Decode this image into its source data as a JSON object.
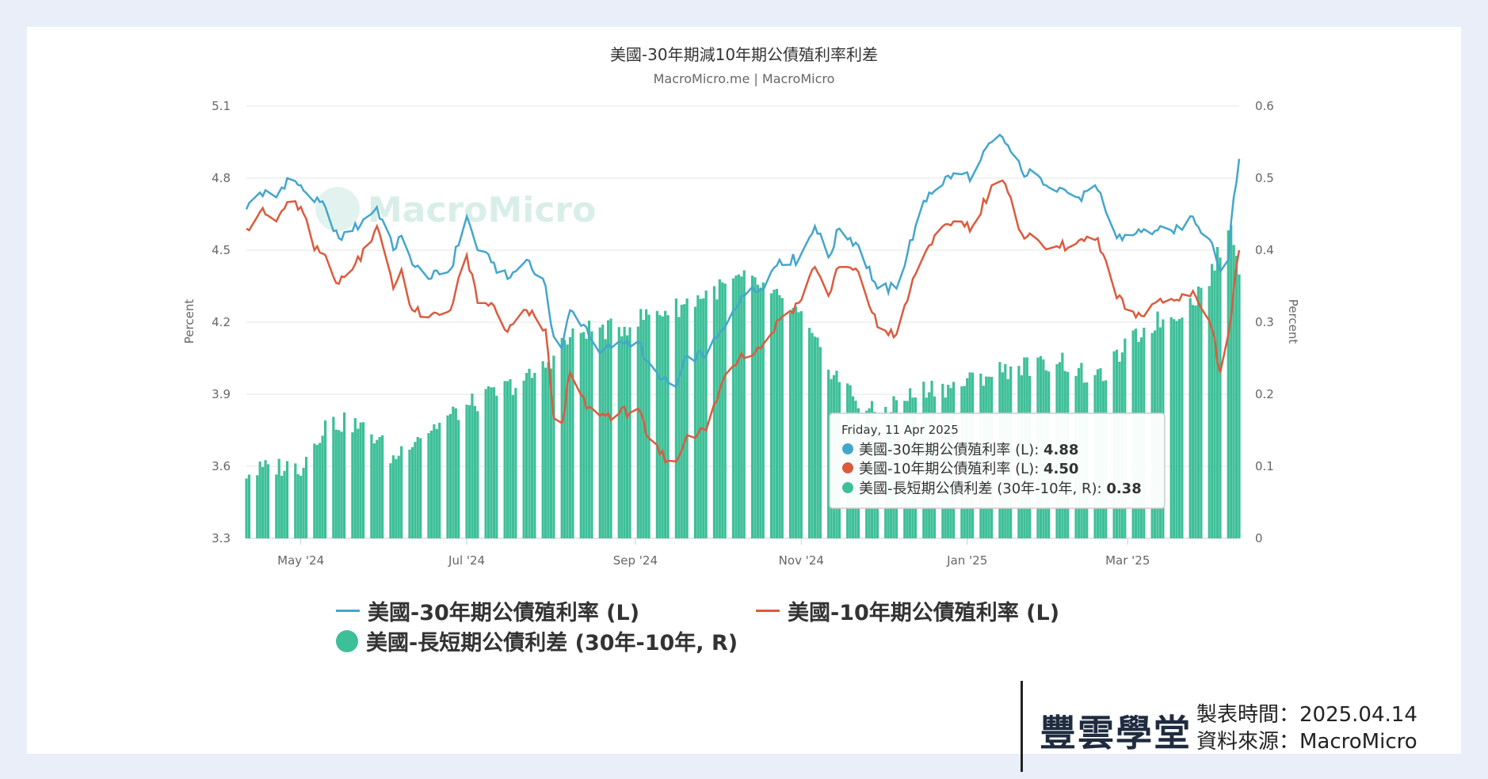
{
  "chart_data": {
    "type": "line",
    "title": "美國-30年期減10年期公債殖利率利差",
    "subtitle": "MacroMicro.me | MacroMicro",
    "watermark": "MacroMicro",
    "left_axis": {
      "label": "Percent",
      "ticks": [
        "5.1",
        "4.8",
        "4.5",
        "4.2",
        "3.9",
        "3.6",
        "3.3"
      ],
      "range": [
        3.3,
        5.1
      ]
    },
    "right_axis": {
      "label": "Percent",
      "ticks": [
        "0.6",
        "0.5",
        "0.4",
        "0.3",
        "0.2",
        "0.1",
        "0"
      ],
      "range": [
        0,
        0.6
      ]
    },
    "x_ticks": [
      "May '24",
      "Jul '24",
      "Sep '24",
      "Nov '24",
      "Jan '25",
      "Mar '25"
    ],
    "x_tick_dates": [
      "2024-05-01",
      "2024-07-01",
      "2024-09-01",
      "2024-11-01",
      "2025-01-01",
      "2025-03-01"
    ],
    "x_range": [
      "2024-04-11",
      "2025-04-11"
    ],
    "grid": true,
    "colors": {
      "yield30": "#44a6cc",
      "yield10": "#db5b3e",
      "spread": "#3dbf98"
    },
    "series": [
      {
        "name": "美國-30年期公債殖利率 (L)",
        "axis": "left",
        "kind": "line",
        "points": [
          [
            "2024-04-11",
            4.67
          ],
          [
            "2024-04-16",
            4.74
          ],
          [
            "2024-04-22",
            4.72
          ],
          [
            "2024-04-26",
            4.8
          ],
          [
            "2024-05-01",
            4.77
          ],
          [
            "2024-05-06",
            4.7
          ],
          [
            "2024-05-10",
            4.68
          ],
          [
            "2024-05-15",
            4.55
          ],
          [
            "2024-05-20",
            4.58
          ],
          [
            "2024-05-29",
            4.68
          ],
          [
            "2024-06-04",
            4.5
          ],
          [
            "2024-06-07",
            4.56
          ],
          [
            "2024-06-11",
            4.44
          ],
          [
            "2024-06-17",
            4.38
          ],
          [
            "2024-06-25",
            4.42
          ],
          [
            "2024-07-01",
            4.64
          ],
          [
            "2024-07-05",
            4.5
          ],
          [
            "2024-07-10",
            4.45
          ],
          [
            "2024-07-16",
            4.38
          ],
          [
            "2024-07-23",
            4.46
          ],
          [
            "2024-07-30",
            4.35
          ],
          [
            "2024-08-02",
            4.14
          ],
          [
            "2024-08-05",
            4.09
          ],
          [
            "2024-08-08",
            4.25
          ],
          [
            "2024-08-14",
            4.18
          ],
          [
            "2024-08-19",
            4.07
          ],
          [
            "2024-08-26",
            4.12
          ],
          [
            "2024-09-02",
            4.12
          ],
          [
            "2024-09-05",
            4.04
          ],
          [
            "2024-09-10",
            3.96
          ],
          [
            "2024-09-16",
            3.93
          ],
          [
            "2024-09-20",
            4.06
          ],
          [
            "2024-09-27",
            4.06
          ],
          [
            "2024-10-04",
            4.18
          ],
          [
            "2024-10-10",
            4.31
          ],
          [
            "2024-10-17",
            4.34
          ],
          [
            "2024-10-24",
            4.46
          ],
          [
            "2024-10-31",
            4.46
          ],
          [
            "2024-11-06",
            4.6
          ],
          [
            "2024-11-11",
            4.47
          ],
          [
            "2024-11-15",
            4.59
          ],
          [
            "2024-11-22",
            4.52
          ],
          [
            "2024-11-29",
            4.34
          ],
          [
            "2024-12-06",
            4.34
          ],
          [
            "2024-12-13",
            4.6
          ],
          [
            "2024-12-18",
            4.74
          ],
          [
            "2024-12-27",
            4.82
          ],
          [
            "2025-01-03",
            4.81
          ],
          [
            "2025-01-10",
            4.95
          ],
          [
            "2025-01-14",
            4.97
          ],
          [
            "2025-01-21",
            4.83
          ],
          [
            "2025-01-28",
            4.8
          ],
          [
            "2025-02-04",
            4.76
          ],
          [
            "2025-02-11",
            4.72
          ],
          [
            "2025-02-18",
            4.75
          ],
          [
            "2025-02-25",
            4.55
          ],
          [
            "2025-03-04",
            4.57
          ],
          [
            "2025-03-11",
            4.58
          ],
          [
            "2025-03-18",
            4.57
          ],
          [
            "2025-03-25",
            4.64
          ],
          [
            "2025-04-01",
            4.53
          ],
          [
            "2025-04-04",
            4.41
          ],
          [
            "2025-04-07",
            4.46
          ],
          [
            "2025-04-09",
            4.72
          ],
          [
            "2025-04-11",
            4.88
          ]
        ]
      },
      {
        "name": "美國-10年期公債殖利率 (L)",
        "axis": "left",
        "kind": "line",
        "points": [
          [
            "2024-04-11",
            4.59
          ],
          [
            "2024-04-16",
            4.66
          ],
          [
            "2024-04-22",
            4.62
          ],
          [
            "2024-04-26",
            4.7
          ],
          [
            "2024-05-01",
            4.68
          ],
          [
            "2024-05-06",
            4.5
          ],
          [
            "2024-05-10",
            4.48
          ],
          [
            "2024-05-15",
            4.36
          ],
          [
            "2024-05-20",
            4.42
          ],
          [
            "2024-05-29",
            4.6
          ],
          [
            "2024-06-04",
            4.34
          ],
          [
            "2024-06-07",
            4.42
          ],
          [
            "2024-06-11",
            4.25
          ],
          [
            "2024-06-17",
            4.22
          ],
          [
            "2024-06-25",
            4.25
          ],
          [
            "2024-07-01",
            4.48
          ],
          [
            "2024-07-05",
            4.28
          ],
          [
            "2024-07-10",
            4.28
          ],
          [
            "2024-07-16",
            4.16
          ],
          [
            "2024-07-23",
            4.25
          ],
          [
            "2024-07-30",
            4.17
          ],
          [
            "2024-08-02",
            3.8
          ],
          [
            "2024-08-05",
            3.78
          ],
          [
            "2024-08-08",
            3.99
          ],
          [
            "2024-08-14",
            3.84
          ],
          [
            "2024-08-19",
            3.81
          ],
          [
            "2024-08-26",
            3.82
          ],
          [
            "2024-09-02",
            3.84
          ],
          [
            "2024-09-05",
            3.73
          ],
          [
            "2024-09-10",
            3.65
          ],
          [
            "2024-09-16",
            3.62
          ],
          [
            "2024-09-20",
            3.73
          ],
          [
            "2024-09-27",
            3.75
          ],
          [
            "2024-10-04",
            3.98
          ],
          [
            "2024-10-10",
            4.07
          ],
          [
            "2024-10-17",
            4.09
          ],
          [
            "2024-10-24",
            4.21
          ],
          [
            "2024-10-31",
            4.28
          ],
          [
            "2024-11-06",
            4.43
          ],
          [
            "2024-11-11",
            4.31
          ],
          [
            "2024-11-15",
            4.43
          ],
          [
            "2024-11-22",
            4.41
          ],
          [
            "2024-11-29",
            4.18
          ],
          [
            "2024-12-06",
            4.15
          ],
          [
            "2024-12-13",
            4.4
          ],
          [
            "2024-12-18",
            4.52
          ],
          [
            "2024-12-27",
            4.62
          ],
          [
            "2025-01-03",
            4.6
          ],
          [
            "2025-01-10",
            4.77
          ],
          [
            "2025-01-14",
            4.79
          ],
          [
            "2025-01-21",
            4.57
          ],
          [
            "2025-01-28",
            4.53
          ],
          [
            "2025-02-04",
            4.51
          ],
          [
            "2025-02-11",
            4.54
          ],
          [
            "2025-02-18",
            4.55
          ],
          [
            "2025-02-25",
            4.3
          ],
          [
            "2025-03-04",
            4.22
          ],
          [
            "2025-03-11",
            4.28
          ],
          [
            "2025-03-18",
            4.29
          ],
          [
            "2025-03-25",
            4.33
          ],
          [
            "2025-04-01",
            4.17
          ],
          [
            "2025-04-04",
            3.99
          ],
          [
            "2025-04-07",
            4.15
          ],
          [
            "2025-04-09",
            4.34
          ],
          [
            "2025-04-11",
            4.5
          ]
        ]
      },
      {
        "name": "美國-長短期公債利差 (30年-10年, R)",
        "axis": "right",
        "kind": "bar",
        "points": [
          [
            "2024-04-11",
            0.09
          ],
          [
            "2024-04-22",
            0.1
          ],
          [
            "2024-05-01",
            0.1
          ],
          [
            "2024-05-10",
            0.16
          ],
          [
            "2024-05-20",
            0.16
          ],
          [
            "2024-05-29",
            0.14
          ],
          [
            "2024-06-04",
            0.11
          ],
          [
            "2024-06-11",
            0.14
          ],
          [
            "2024-06-17",
            0.15
          ],
          [
            "2024-06-25",
            0.17
          ],
          [
            "2024-07-05",
            0.19
          ],
          [
            "2024-07-16",
            0.21
          ],
          [
            "2024-07-23",
            0.22
          ],
          [
            "2024-07-30",
            0.24
          ],
          [
            "2024-08-05",
            0.27
          ],
          [
            "2024-08-14",
            0.29
          ],
          [
            "2024-08-26",
            0.29
          ],
          [
            "2024-09-05",
            0.31
          ],
          [
            "2024-09-16",
            0.32
          ],
          [
            "2024-09-27",
            0.34
          ],
          [
            "2024-10-04",
            0.35
          ],
          [
            "2024-10-10",
            0.36
          ],
          [
            "2024-10-17",
            0.35
          ],
          [
            "2024-10-24",
            0.33
          ],
          [
            "2024-10-31",
            0.31
          ],
          [
            "2024-11-06",
            0.27
          ],
          [
            "2024-11-11",
            0.24
          ],
          [
            "2024-11-22",
            0.19
          ],
          [
            "2024-11-29",
            0.17
          ],
          [
            "2024-12-06",
            0.19
          ],
          [
            "2024-12-13",
            0.2
          ],
          [
            "2024-12-18",
            0.21
          ],
          [
            "2024-12-27",
            0.21
          ],
          [
            "2025-01-03",
            0.22
          ],
          [
            "2025-01-10",
            0.23
          ],
          [
            "2025-01-21",
            0.24
          ],
          [
            "2025-01-28",
            0.24
          ],
          [
            "2025-02-04",
            0.25
          ],
          [
            "2025-02-11",
            0.23
          ],
          [
            "2025-02-18",
            0.22
          ],
          [
            "2025-02-25",
            0.25
          ],
          [
            "2025-03-04",
            0.28
          ],
          [
            "2025-03-11",
            0.3
          ],
          [
            "2025-03-18",
            0.31
          ],
          [
            "2025-03-25",
            0.33
          ],
          [
            "2025-04-01",
            0.37
          ],
          [
            "2025-04-04",
            0.4
          ],
          [
            "2025-04-07",
            0.43
          ],
          [
            "2025-04-09",
            0.42
          ],
          [
            "2025-04-11",
            0.38
          ]
        ]
      }
    ],
    "legend": {
      "items": [
        {
          "label": "美國-30年期公債殖利率 (L)",
          "marker": "line",
          "color": "#44a6cc"
        },
        {
          "label": "美國-10年期公債殖利率 (L)",
          "marker": "line",
          "color": "#db5b3e"
        },
        {
          "label": "美國-長短期公債利差 (30年-10年, R)",
          "marker": "circle",
          "color": "#3dbf98"
        }
      ]
    },
    "tooltip": {
      "date": "Friday, 11 Apr 2025",
      "rows": [
        {
          "label": "美國-30年期公債殖利率 (L): ",
          "value": "4.88",
          "color": "#44a6cc"
        },
        {
          "label": "美國-10年期公債殖利率 (L): ",
          "value": "4.50",
          "color": "#db5b3e"
        },
        {
          "label": "美國-長短期公債利差 (30年-10年, R): ",
          "value": "0.38",
          "color": "#3dbf98"
        }
      ]
    }
  },
  "footer": {
    "brand": "豐雲學堂",
    "made_time": "製表時間：2025.04.14",
    "source": "資料來源：MacroMicro"
  }
}
